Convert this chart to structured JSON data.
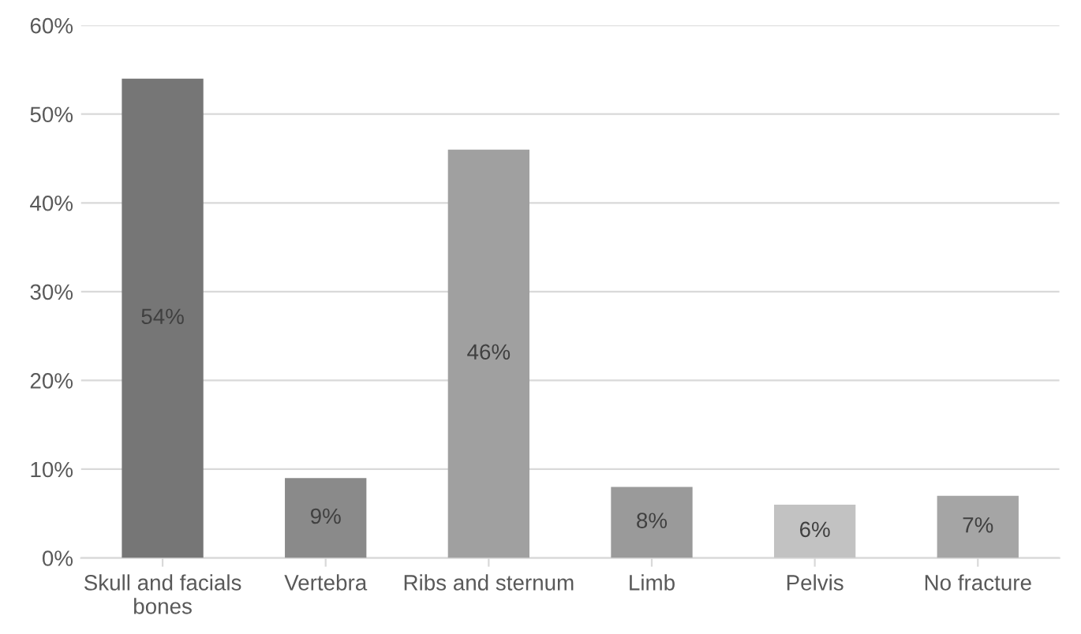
{
  "chart_data": {
    "type": "bar",
    "categories": [
      "Skull and facials\nbones",
      "Vertebra",
      "Ribs and sternum",
      "Limb",
      "Pelvis",
      "No fracture"
    ],
    "values": [
      54,
      9,
      46,
      8,
      6,
      7
    ],
    "value_labels": [
      "54%",
      "9%",
      "46%",
      "8%",
      "6%",
      "7%"
    ],
    "colors": [
      "#767676",
      "#8a8a8a",
      "#a0a0a0",
      "#9a9a9a",
      "#c2c2c2",
      "#a5a5a5"
    ],
    "ylim": [
      0,
      60
    ],
    "yticks": [
      {
        "value": 0,
        "label": "0%"
      },
      {
        "value": 10,
        "label": "10%"
      },
      {
        "value": 20,
        "label": "20%"
      },
      {
        "value": 30,
        "label": "30%"
      },
      {
        "value": 40,
        "label": "40%"
      },
      {
        "value": 50,
        "label": "50%"
      },
      {
        "value": 60,
        "label": "60%"
      }
    ],
    "grid": "y",
    "legend": false
  }
}
